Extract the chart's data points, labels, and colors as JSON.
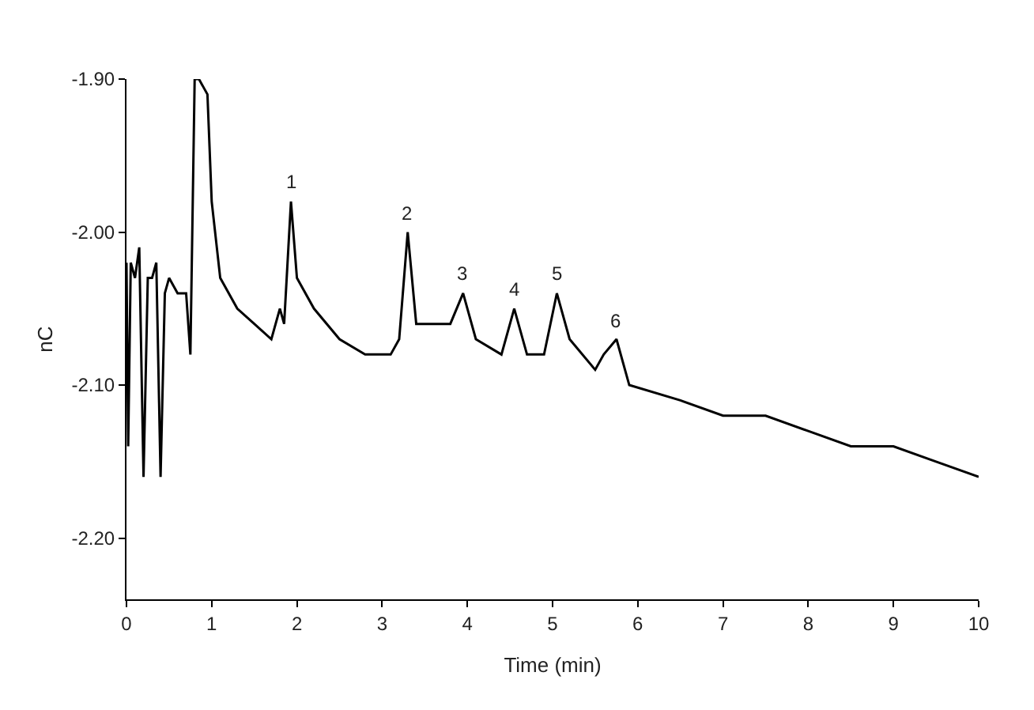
{
  "chart_data": {
    "type": "line",
    "xlabel": "Time (min)",
    "ylabel": "nC",
    "x": [
      0.0,
      0.02,
      0.05,
      0.1,
      0.15,
      0.2,
      0.25,
      0.3,
      0.35,
      0.4,
      0.45,
      0.5,
      0.6,
      0.7,
      0.75,
      0.8,
      0.85,
      0.95,
      1.0,
      1.1,
      1.3,
      1.5,
      1.7,
      1.8,
      1.85,
      1.9,
      1.93,
      2.0,
      2.2,
      2.5,
      2.8,
      3.1,
      3.2,
      3.3,
      3.4,
      3.6,
      3.8,
      3.95,
      4.1,
      4.4,
      4.55,
      4.7,
      4.9,
      5.05,
      5.2,
      5.5,
      5.6,
      5.75,
      5.9,
      6.5,
      7.0,
      7.5,
      8.0,
      8.5,
      9.0,
      9.5,
      10.0
    ],
    "series": [
      {
        "color": "#000000",
        "values": [
          -2.02,
          -2.14,
          -2.02,
          -2.03,
          -2.01,
          -2.16,
          -2.03,
          -2.03,
          -2.02,
          -2.16,
          -2.04,
          -2.03,
          -2.04,
          -2.04,
          -2.08,
          -1.9,
          -1.9,
          -1.91,
          -1.98,
          -2.03,
          -2.05,
          -2.06,
          -2.07,
          -2.05,
          -2.06,
          -2.01,
          -1.98,
          -2.03,
          -2.05,
          -2.07,
          -2.08,
          -2.08,
          -2.07,
          -2.0,
          -2.06,
          -2.06,
          -2.06,
          -2.04,
          -2.07,
          -2.08,
          -2.05,
          -2.08,
          -2.08,
          -2.04,
          -2.07,
          -2.09,
          -2.08,
          -2.07,
          -2.1,
          -2.11,
          -2.12,
          -2.12,
          -2.13,
          -2.14,
          -2.14,
          -2.15,
          -2.16
        ]
      }
    ],
    "xlim": [
      0,
      10
    ],
    "xticks": [
      0,
      1,
      2,
      3,
      4,
      5,
      6,
      7,
      8,
      9,
      10
    ],
    "ylim": [
      -2.24,
      -1.9
    ],
    "yticks": [
      {
        "value": -1.9,
        "label": "-1.90"
      },
      {
        "value": -2.0,
        "label": "-2.00"
      },
      {
        "value": -2.1,
        "label": "-2.10"
      },
      {
        "value": -2.2,
        "label": "-2.20"
      }
    ],
    "annotations": [
      {
        "text": "1",
        "x": 1.93,
        "y": -1.98
      },
      {
        "text": "2",
        "x": 3.3,
        "y": -2.0
      },
      {
        "text": "3",
        "x": 3.95,
        "y": -2.04
      },
      {
        "text": "4",
        "x": 4.55,
        "y": -2.05
      },
      {
        "text": "5",
        "x": 5.05,
        "y": -2.04
      },
      {
        "text": "6",
        "x": 5.75,
        "y": -2.07
      }
    ],
    "marker": "none",
    "line_style": "solid"
  }
}
